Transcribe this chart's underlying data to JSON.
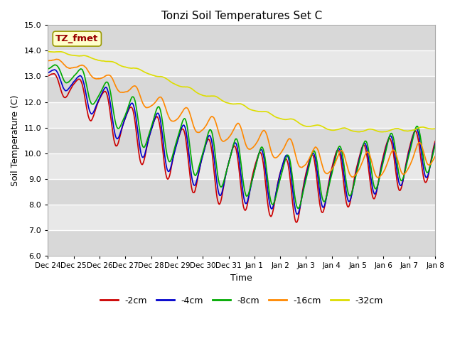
{
  "title": "Tonzi Soil Temperatures Set C",
  "xlabel": "Time",
  "ylabel": "Soil Temperature (C)",
  "ylim": [
    6.0,
    15.0
  ],
  "yticks": [
    6.0,
    7.0,
    8.0,
    9.0,
    10.0,
    11.0,
    12.0,
    13.0,
    14.0,
    15.0
  ],
  "xtick_labels": [
    "Dec 24",
    "Dec 25",
    "Dec 26",
    "Dec 27",
    "Dec 28",
    "Dec 29",
    "Dec 30",
    "Dec 31",
    "Jan 1",
    "Jan 2",
    "Jan 3",
    "Jan 4",
    "Jan 5",
    "Jan 6",
    "Jan 7",
    "Jan 8"
  ],
  "lines": {
    "-2cm": {
      "color": "#cc0000",
      "lw": 1.2
    },
    "-4cm": {
      "color": "#0000cc",
      "lw": 1.2
    },
    "-8cm": {
      "color": "#00aa00",
      "lw": 1.2
    },
    "-16cm": {
      "color": "#ff8800",
      "lw": 1.2
    },
    "-32cm": {
      "color": "#dddd00",
      "lw": 1.2
    }
  },
  "legend_order": [
    "-2cm",
    "-4cm",
    "-8cm",
    "-16cm",
    "-32cm"
  ],
  "annotation_text": "TZ_fmet",
  "annotation_color": "#990000",
  "annotation_bg": "#ffffcc",
  "plot_bg": "#e8e8e8",
  "n_points": 1500
}
